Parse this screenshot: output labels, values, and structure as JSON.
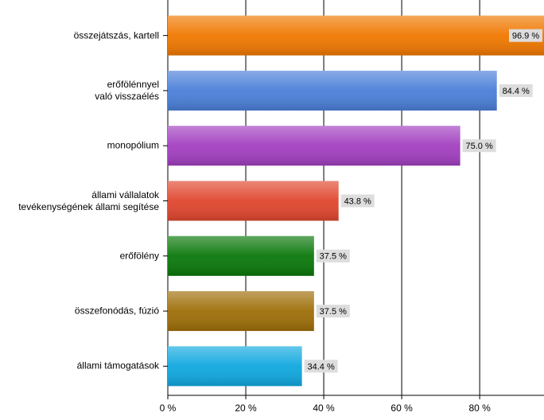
{
  "chart_data": {
    "type": "bar",
    "orientation": "horizontal",
    "categories": [
      "összejátszás, kartell",
      "erőfölénnyel\nvaló visszaélés",
      "monopólium",
      "állami vállalatok\ntevékenységének állami segítése",
      "erőfölény",
      "összefonódás, fúzió",
      "állami támogatások"
    ],
    "values": [
      96.9,
      84.4,
      75.0,
      43.8,
      37.5,
      37.5,
      34.4
    ],
    "value_labels": [
      "96.9 %",
      "84.4 %",
      "75.0 %",
      "43.8 %",
      "37.5 %",
      "37.5 %",
      "34.4 %"
    ],
    "colors": [
      "#f07800",
      "#4a7fd8",
      "#a23fc0",
      "#e0462e",
      "#0a780a",
      "#9e6e08",
      "#10a8e0"
    ],
    "xlim": [
      0,
      96.5
    ],
    "xticks": [
      {
        "value": 0,
        "label": "0 %"
      },
      {
        "value": 20,
        "label": "20 %"
      },
      {
        "value": 40,
        "label": "40 %"
      },
      {
        "value": 60,
        "label": "60 %"
      },
      {
        "value": 80,
        "label": "80 %"
      }
    ],
    "grid": true
  }
}
